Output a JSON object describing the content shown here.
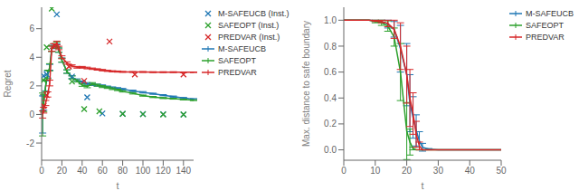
{
  "chart_data": [
    {
      "type": "line",
      "x_label": "t",
      "y_label": "Regret",
      "xlim": [
        0,
        150
      ],
      "ylim": [
        -3.2,
        7.5
      ],
      "xticks": [
        0,
        20,
        40,
        60,
        80,
        100,
        120,
        140
      ],
      "yticks": [
        -2,
        0,
        2,
        4,
        6
      ],
      "grid": false,
      "legend": "upper right",
      "series": [
        {
          "name": "M-SAFEUCB (Inst.)",
          "type": "scatter",
          "marker": "x",
          "color": "#1f77b4",
          "x": [
            2,
            5,
            15,
            30,
            45,
            60,
            80,
            100,
            120,
            140
          ],
          "values": [
            2.7,
            2.8,
            7.0,
            2.65,
            1.2,
            0.07,
            0.05,
            0.03,
            0.02,
            0.0
          ]
        },
        {
          "name": "SAFEOPT (Inst.)",
          "type": "scatter",
          "marker": "x",
          "color": "#2ca02c",
          "x": [
            2,
            5,
            10,
            30,
            42,
            57,
            80,
            100,
            120,
            140
          ],
          "values": [
            2.4,
            4.7,
            7.4,
            2.3,
            0.38,
            0.22,
            0.05,
            0.02,
            0.0,
            0.0
          ]
        },
        {
          "name": "PREDVAR (Inst.)",
          "type": "scatter",
          "marker": "x",
          "color": "#d62728",
          "x": [
            2,
            5,
            13,
            27,
            42,
            67,
            92,
            140
          ],
          "values": [
            0.6,
            1.35,
            4.8,
            3.35,
            2.35,
            5.1,
            2.8,
            2.8
          ]
        },
        {
          "name": "M-SAFEUCB",
          "type": "line",
          "color": "#1f77b4",
          "x": [
            1,
            2,
            4,
            6,
            8,
            10,
            12,
            15,
            17,
            20,
            25,
            30,
            35,
            40,
            45,
            50,
            55,
            60,
            65,
            70,
            75,
            80,
            90,
            100,
            110,
            120,
            130,
            140,
            150
          ],
          "values": [
            0.0,
            0.8,
            2.0,
            2.8,
            3.3,
            4.6,
            4.75,
            4.8,
            4.5,
            3.8,
            3.0,
            2.6,
            2.4,
            2.25,
            2.15,
            2.1,
            2.05,
            2.0,
            1.93,
            1.87,
            1.82,
            1.77,
            1.65,
            1.55,
            1.45,
            1.35,
            1.25,
            1.15,
            1.08
          ],
          "error": [
            1.3,
            0.5,
            0.35,
            0.25,
            0.2,
            0.18,
            0.15,
            0.13,
            0.15,
            0.15,
            0.12,
            0.1,
            0.09,
            0.09,
            0.08,
            0.07,
            0.07,
            0.07,
            0.06,
            0.06,
            0.06,
            0.05,
            0.05,
            0.05,
            0.04,
            0.04,
            0.04,
            0.04,
            0.03
          ]
        },
        {
          "name": "SAFEOPT",
          "type": "line",
          "color": "#2ca02c",
          "x": [
            1,
            2,
            4,
            6,
            8,
            10,
            12,
            15,
            17,
            20,
            25,
            30,
            35,
            40,
            45,
            50,
            55,
            60,
            65,
            70,
            75,
            80,
            90,
            100,
            110,
            120,
            130,
            140,
            150
          ],
          "values": [
            0.0,
            0.8,
            2.0,
            2.8,
            3.3,
            4.6,
            4.78,
            4.9,
            4.5,
            3.8,
            3.0,
            2.6,
            2.35,
            2.05,
            1.95,
            2.15,
            2.05,
            1.95,
            1.88,
            1.8,
            1.72,
            1.62,
            1.48,
            1.32,
            1.22,
            1.15,
            1.1,
            1.05,
            1.0
          ],
          "error": [
            1.5,
            0.6,
            0.4,
            0.3,
            0.25,
            0.2,
            0.16,
            0.15,
            0.15,
            0.14,
            0.12,
            0.1,
            0.08,
            0.08,
            0.08,
            0.08,
            0.07,
            0.07,
            0.06,
            0.06,
            0.05,
            0.05,
            0.05,
            0.04,
            0.04,
            0.04,
            0.03,
            0.03,
            0.03
          ]
        },
        {
          "name": "PREDVAR",
          "type": "line",
          "color": "#d62728",
          "x": [
            1,
            2,
            4,
            6,
            8,
            10,
            12,
            15,
            17,
            20,
            25,
            30,
            35,
            40,
            45,
            50,
            55,
            60,
            65,
            70,
            75,
            80,
            90,
            100,
            110,
            120,
            130,
            140,
            150
          ],
          "values": [
            0.0,
            0.3,
            0.8,
            1.4,
            2.2,
            4.6,
            4.8,
            5.0,
            4.65,
            4.0,
            3.6,
            3.4,
            3.3,
            3.3,
            3.25,
            3.2,
            3.15,
            3.1,
            3.05,
            3.02,
            3.0,
            2.98,
            2.97,
            2.97,
            2.96,
            2.96,
            2.96,
            2.95,
            2.95
          ],
          "error": [
            0.25,
            0.2,
            0.18,
            0.18,
            0.2,
            0.18,
            0.15,
            0.13,
            0.12,
            0.1,
            0.08,
            0.07,
            0.06,
            0.06,
            0.06,
            0.05,
            0.05,
            0.05,
            0.04,
            0.04,
            0.04,
            0.03,
            0.03,
            0.03,
            0.03,
            0.03,
            0.03,
            0.02,
            0.02
          ]
        }
      ]
    },
    {
      "type": "line",
      "x_label": "t",
      "y_label": "Max. distance to safe boundary",
      "xlim": [
        0,
        50
      ],
      "ylim": [
        -0.08,
        1.1
      ],
      "xticks": [
        0,
        10,
        20,
        30,
        40,
        50
      ],
      "yticks": [
        {
          "value": 0.0,
          "label": "0.0"
        },
        0.2,
        0.4,
        0.6,
        0.8,
        {
          "value": 1.0,
          "label": "1.0"
        }
      ],
      "grid": false,
      "legend": "upper right",
      "series": [
        {
          "name": "M-SAFEUCB",
          "type": "line",
          "color": "#1f77b4",
          "x": [
            0,
            2,
            5,
            8,
            10,
            12,
            14,
            16,
            18,
            20,
            21,
            22,
            23,
            24,
            25,
            27,
            30,
            35,
            40,
            50
          ],
          "values": [
            1.0,
            1.0,
            1.0,
            1.0,
            0.995,
            0.99,
            0.97,
            0.93,
            0.78,
            0.58,
            0.36,
            0.25,
            0.15,
            0.07,
            0.02,
            0.005,
            0.0,
            0.0,
            0.0,
            0.0
          ],
          "error": [
            0.0,
            0.0,
            0.0,
            0.0,
            0.005,
            0.01,
            0.03,
            0.06,
            0.18,
            0.24,
            0.22,
            0.16,
            0.12,
            0.07,
            0.03,
            0.005,
            0.0,
            0.0,
            0.0,
            0.0
          ]
        },
        {
          "name": "SAFEOPT",
          "type": "line",
          "color": "#2ca02c",
          "x": [
            0,
            2,
            5,
            8,
            10,
            12,
            14,
            16,
            18,
            20,
            21,
            22,
            23,
            24,
            25,
            27,
            30,
            35,
            40,
            50
          ],
          "values": [
            1.0,
            1.0,
            1.0,
            1.0,
            0.99,
            0.98,
            0.955,
            0.87,
            0.6,
            0.145,
            0.06,
            0.01,
            0.0,
            0.0,
            0.0,
            0.0,
            0.0,
            0.0,
            0.0,
            0.0
          ],
          "error": [
            0.0,
            0.0,
            0.0,
            0.0,
            0.01,
            0.02,
            0.04,
            0.07,
            0.22,
            0.22,
            0.1,
            0.01,
            0.0,
            0.0,
            0.0,
            0.0,
            0.0,
            0.0,
            0.0,
            0.0
          ]
        },
        {
          "name": "PREDVAR",
          "type": "line",
          "color": "#d62728",
          "x": [
            0,
            2,
            5,
            8,
            10,
            12,
            14,
            16,
            18,
            20,
            21,
            22,
            23,
            24,
            25,
            27,
            30,
            35,
            40,
            50
          ],
          "values": [
            1.0,
            1.0,
            1.0,
            1.0,
            0.995,
            0.99,
            0.975,
            0.93,
            0.8,
            0.58,
            0.4,
            0.28,
            0.12,
            0.03,
            0.0,
            0.0,
            0.0,
            0.0,
            0.0,
            0.0
          ],
          "error": [
            0.0,
            0.0,
            0.0,
            0.0,
            0.005,
            0.01,
            0.025,
            0.07,
            0.18,
            0.22,
            0.22,
            0.16,
            0.1,
            0.03,
            0.0,
            0.0,
            0.0,
            0.0,
            0.0,
            0.0
          ]
        }
      ]
    }
  ]
}
